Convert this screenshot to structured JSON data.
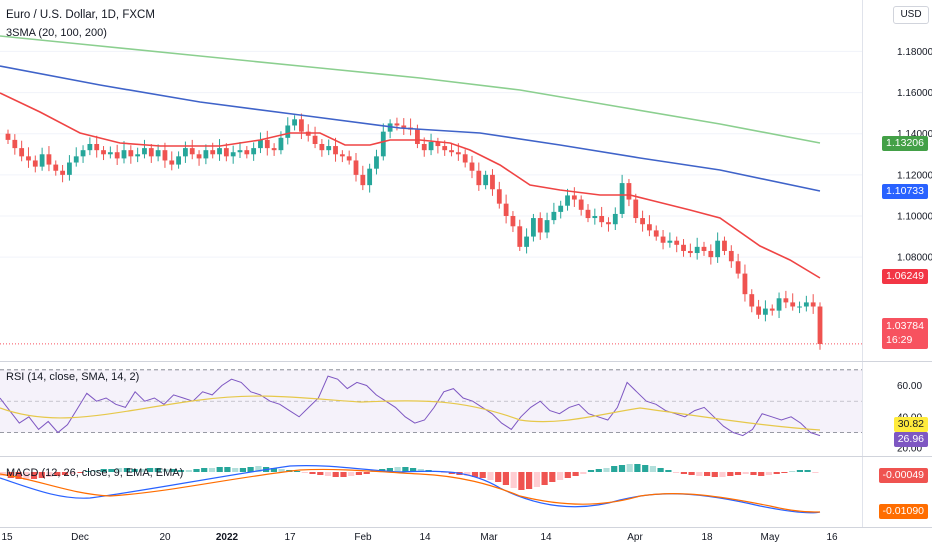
{
  "header": {
    "symbol_title": "Euro / U.S. Dollar, 1D, FXCM",
    "indicator_label": "3SMA (20, 100, 200)",
    "currency": "USD"
  },
  "price_axis": {
    "ticks": [
      "1.18000",
      "1.16000",
      "1.14000",
      "1.12000",
      "1.10000",
      "1.08000"
    ],
    "min": 1.03,
    "max": 1.205
  },
  "badges": {
    "sma200": {
      "value": "1.13206",
      "color": "#43a047"
    },
    "sma100": {
      "value": "1.10733",
      "color": "#2962ff"
    },
    "sma20": {
      "value": "1.06249",
      "color": "#f23645"
    },
    "last_price": {
      "value": "1.03784",
      "color": "#f7525f"
    },
    "countdown": "16:29"
  },
  "rsi": {
    "label": "RSI (14, close, SMA, 14, 2)",
    "ticks": [
      "60.00",
      "40.00",
      "20.00"
    ],
    "rsi_value": "26.96",
    "sma_value": "30.82",
    "upper_band": 70,
    "lower_band": 30
  },
  "macd": {
    "label": "MACD (12, 26, close, 9, EMA, EMA)",
    "signal_value": "-0.00049",
    "macd_value": "-0.01090"
  },
  "time_axis": {
    "labels": [
      "15",
      "Dec",
      "20",
      "2022",
      "17",
      "Feb",
      "14",
      "Mar",
      "14",
      "Apr",
      "18",
      "May",
      "16"
    ]
  },
  "chart_data": {
    "type": "candlestick",
    "title": "Euro / U.S. Dollar, 1D, FXCM",
    "candles_close_approx": [
      1.137,
      1.133,
      1.129,
      1.127,
      1.124,
      1.13,
      1.125,
      1.122,
      1.12,
      1.126,
      1.129,
      1.132,
      1.135,
      1.132,
      1.13,
      1.131,
      1.128,
      1.132,
      1.129,
      1.13,
      1.133,
      1.129,
      1.132,
      1.127,
      1.125,
      1.129,
      1.133,
      1.13,
      1.128,
      1.132,
      1.13,
      1.133,
      1.129,
      1.131,
      1.132,
      1.13,
      1.133,
      1.137,
      1.133,
      1.132,
      1.138,
      1.144,
      1.147,
      1.141,
      1.139,
      1.135,
      1.132,
      1.134,
      1.13,
      1.129,
      1.127,
      1.12,
      1.115,
      1.123,
      1.129,
      1.141,
      1.145,
      1.144,
      1.143,
      1.142,
      1.135,
      1.132,
      1.136,
      1.134,
      1.132,
      1.131,
      1.13,
      1.126,
      1.122,
      1.115,
      1.12,
      1.113,
      1.106,
      1.1,
      1.095,
      1.085,
      1.09,
      1.099,
      1.092,
      1.098,
      1.102,
      1.105,
      1.11,
      1.108,
      1.103,
      1.099,
      1.1,
      1.097,
      1.096,
      1.101,
      1.116,
      1.108,
      1.099,
      1.096,
      1.093,
      1.09,
      1.087,
      1.088,
      1.086,
      1.083,
      1.082,
      1.085,
      1.083,
      1.08,
      1.088,
      1.083,
      1.078,
      1.072,
      1.062,
      1.056,
      1.052,
      1.055,
      1.054,
      1.06,
      1.058,
      1.056,
      1.056,
      1.058,
      1.056,
      1.0378
    ],
    "sma20_last": 1.06249,
    "sma100_last": 1.10733,
    "sma200_last": 1.13206,
    "last_close": 1.03784,
    "ylim": [
      1.03,
      1.2
    ]
  }
}
